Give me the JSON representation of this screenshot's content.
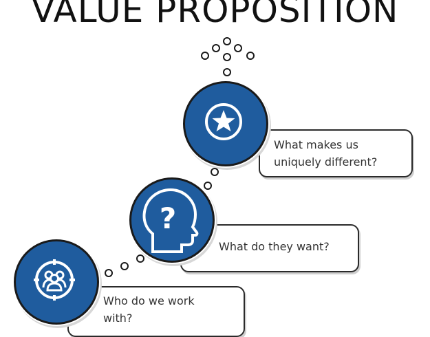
{
  "title": "VALUE PROPOSITION",
  "steps": [
    {
      "label_line1": "What makes us",
      "label_line2": "uniquely different?",
      "icon": "star-icon"
    },
    {
      "label_line1": "What do they want?",
      "label_line2": "",
      "icon": "question-head-icon"
    },
    {
      "label_line1": "Who do we work",
      "label_line2": "with?",
      "icon": "group-target-icon"
    }
  ],
  "colors": {
    "accent": "#1f5c9e",
    "outline": "#1a1a1a"
  }
}
